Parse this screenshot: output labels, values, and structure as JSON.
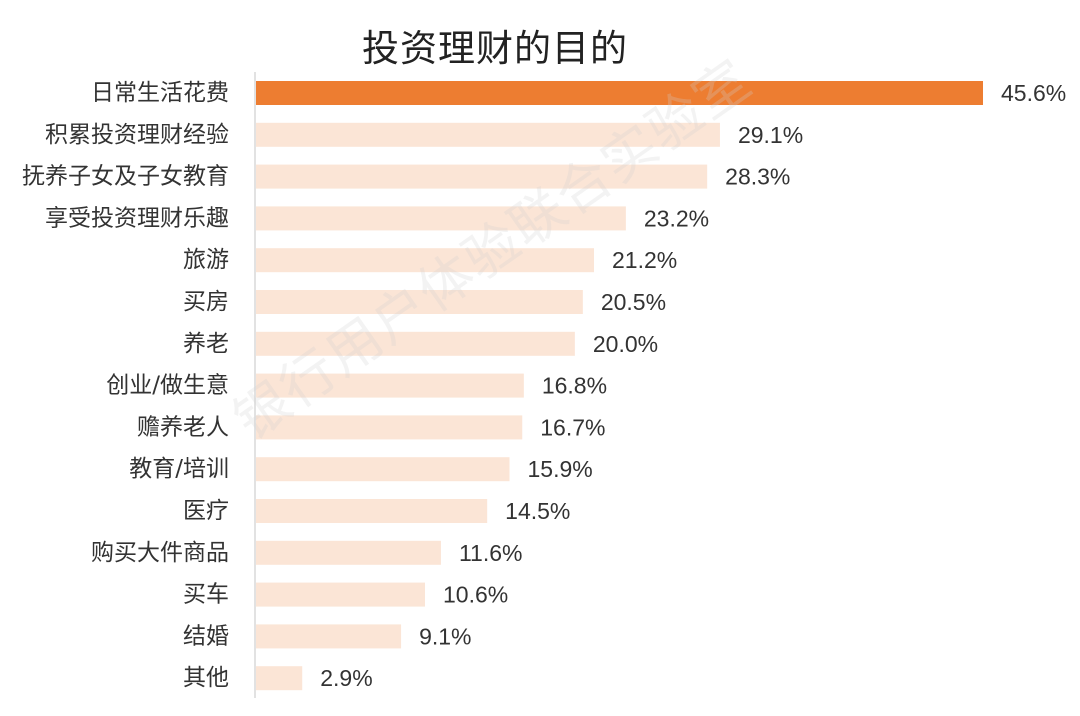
{
  "chart_data": {
    "type": "bar",
    "orientation": "horizontal",
    "title": "投资理财的目的",
    "categories": [
      "日常生活花费",
      "积累投资理财经验",
      "抚养子女及子女教育",
      "享受投资理财乐趣",
      "旅游",
      "买房",
      "养老",
      "创业/做生意",
      "赡养老人",
      "教育/培训",
      "医疗",
      "购买大件商品",
      "买车",
      "结婚",
      "其他"
    ],
    "values": [
      45.6,
      29.1,
      28.3,
      23.2,
      21.2,
      20.5,
      20.0,
      16.8,
      16.7,
      15.9,
      14.5,
      11.6,
      10.6,
      9.1,
      2.9
    ],
    "value_labels": [
      "45.6%",
      "29.1%",
      "28.3%",
      "23.2%",
      "21.2%",
      "20.5%",
      "20.0%",
      "16.8%",
      "16.7%",
      "15.9%",
      "14.5%",
      "11.6%",
      "10.6%",
      "9.1%",
      "2.9%"
    ],
    "highlight_index": 0,
    "colors": {
      "highlight": "#ED7D31",
      "bar": "#FBE5D6",
      "label": "#333333",
      "axis": "#D9D9D9"
    },
    "xlim": [
      0,
      45.6
    ]
  },
  "watermark": "银行用户体验联合实验室"
}
